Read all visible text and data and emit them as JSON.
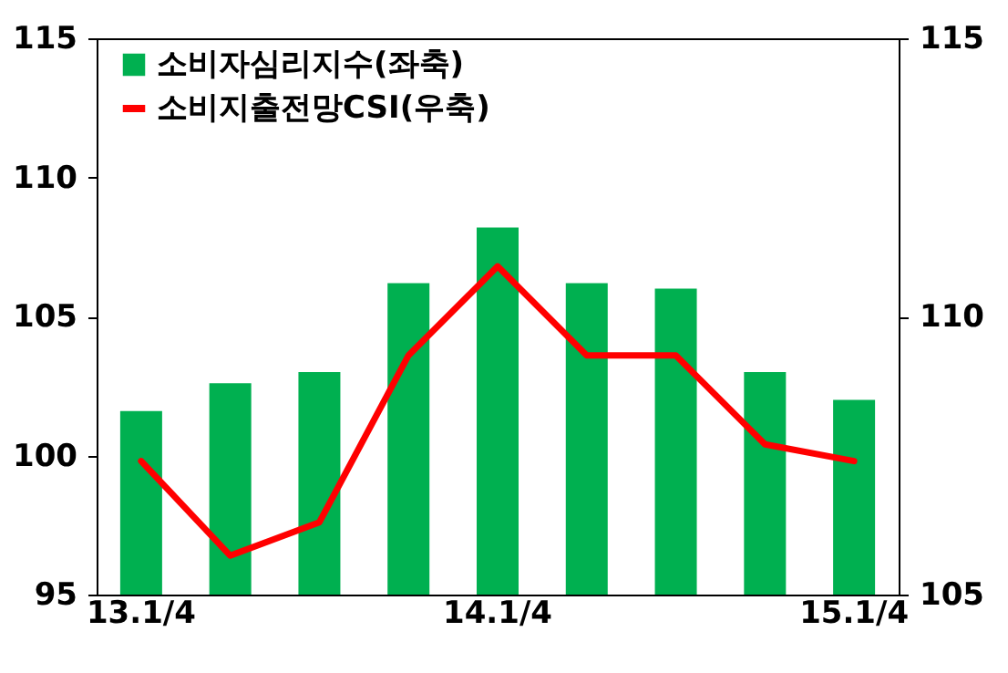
{
  "chart_data": {
    "type": "bar",
    "categories": [
      "13.1/4",
      null,
      null,
      null,
      "14.1/4",
      null,
      null,
      null,
      "15.1/4"
    ],
    "series": [
      {
        "name": "소비자심리지수(좌축)",
        "color": "#00b050",
        "values": [
          101.6,
          102.6,
          103.0,
          106.2,
          108.2,
          106.2,
          106.0,
          103.0,
          102.0
        ]
      },
      {
        "name": "소비지출전망CSI(우축)",
        "type": "line",
        "axis": "y2",
        "color": "#ff0000",
        "values": [
          107.4,
          105.7,
          106.3,
          109.3,
          110.9,
          109.3,
          109.3,
          107.7,
          107.4
        ]
      }
    ],
    "ylim": [
      95,
      115
    ],
    "yticks": [
      95,
      100,
      105,
      110,
      115
    ],
    "y2lim": [
      105,
      115
    ],
    "y2ticks": [
      105,
      110,
      115
    ],
    "grid": false,
    "legend": "top left"
  }
}
